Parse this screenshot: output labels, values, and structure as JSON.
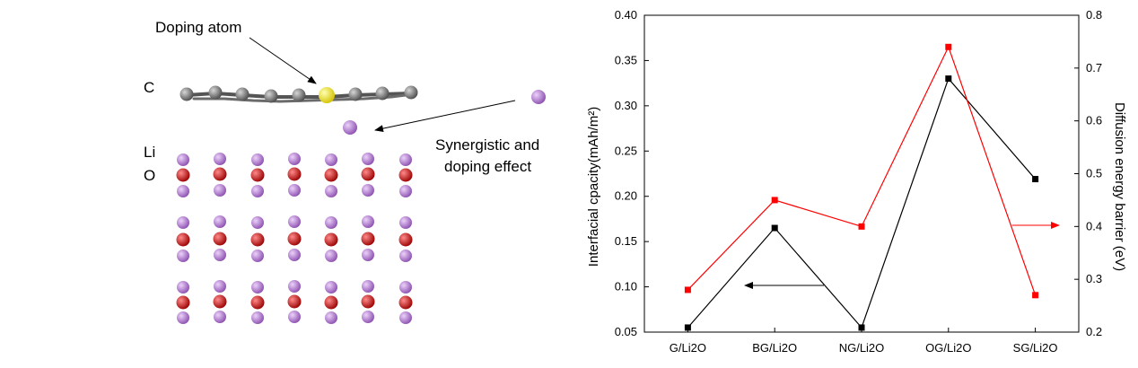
{
  "structure": {
    "labels": {
      "carbon": "C",
      "lithium": "Li",
      "oxygen": "O",
      "doping_atom": "Doping  atom",
      "effect_line1": "Synergistic and",
      "effect_line2": "doping effect"
    },
    "colors": {
      "carbon": "#7a7a7a",
      "dopant": "#ffee00",
      "lithium": "#b77ad6",
      "oxygen": "#e01010"
    }
  },
  "chart_data": {
    "type": "line",
    "categories": [
      "G/Li2O",
      "BG/Li2O",
      "NG/Li2O",
      "OG/Li2O",
      "SG/Li2O"
    ],
    "ylabel": "Interfacial cpacity(mAh/m²)",
    "y2label": "Diffusion energy barrier (eV)",
    "ylim": [
      0.05,
      0.4
    ],
    "y2lim": [
      0.2,
      0.8
    ],
    "yticks": [
      "0.05",
      "0.10",
      "0.15",
      "0.20",
      "0.25",
      "0.30",
      "0.35",
      "0.40"
    ],
    "y2ticks": [
      "0.2",
      "0.3",
      "0.4",
      "0.5",
      "0.6",
      "0.7",
      "0.8"
    ],
    "grid": false,
    "series": [
      {
        "axis": "left",
        "color": "#000000",
        "values": [
          0.055,
          0.165,
          0.055,
          0.33,
          0.219
        ]
      },
      {
        "axis": "right",
        "color": "#ff0000",
        "values": [
          0.28,
          0.45,
          0.4,
          0.74,
          0.27
        ]
      }
    ]
  }
}
